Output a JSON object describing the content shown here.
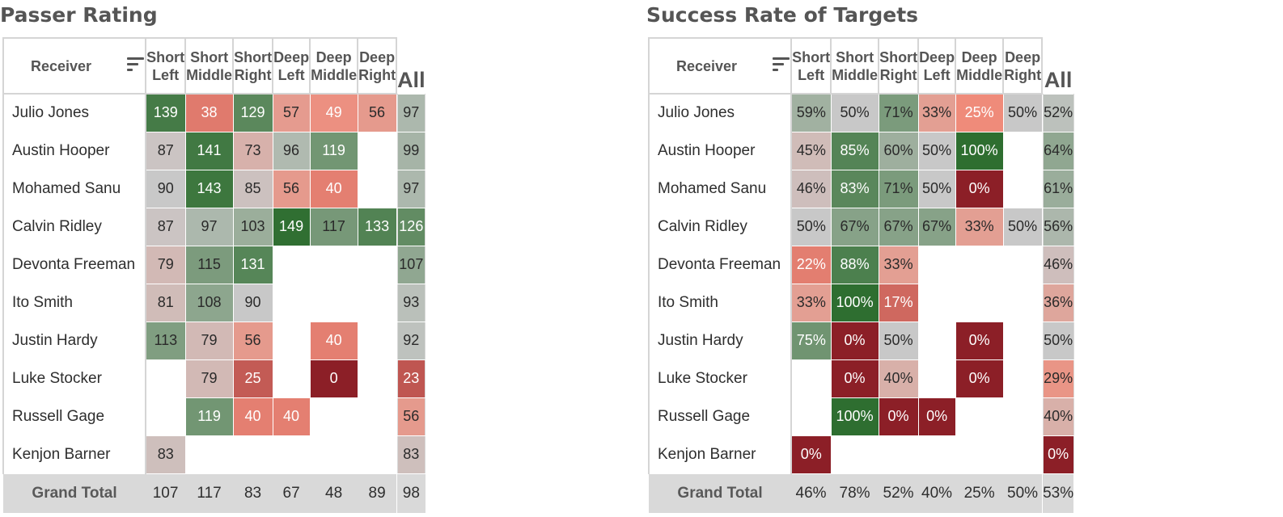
{
  "chart_data": [
    {
      "type": "heatmap",
      "title": "Passer Rating",
      "row_header": "Receiver",
      "columns": [
        {
          "line1": "Short",
          "line2": "Left"
        },
        {
          "line1": "Short",
          "line2": "Middle"
        },
        {
          "line1": "Short",
          "line2": "Right"
        },
        {
          "line1": "Deep",
          "line2": "Left"
        },
        {
          "line1": "Deep",
          "line2": "Middle"
        },
        {
          "line1": "Deep",
          "line2": "Right"
        }
      ],
      "all_label": "All",
      "rows": [
        {
          "name": "Julio Jones",
          "values": [
            139,
            38,
            129,
            57,
            49,
            56
          ],
          "all": 97
        },
        {
          "name": "Austin Hooper",
          "values": [
            87,
            141,
            73,
            96,
            119,
            null
          ],
          "all": 99
        },
        {
          "name": "Mohamed Sanu",
          "values": [
            90,
            143,
            85,
            56,
            40,
            null
          ],
          "all": 97
        },
        {
          "name": "Calvin Ridley",
          "values": [
            87,
            97,
            103,
            149,
            117,
            133
          ],
          "all": 126
        },
        {
          "name": "Devonta Freeman",
          "values": [
            79,
            115,
            131,
            null,
            null,
            null
          ],
          "all": 107
        },
        {
          "name": "Ito Smith",
          "values": [
            81,
            108,
            90,
            null,
            null,
            null
          ],
          "all": 93
        },
        {
          "name": "Justin Hardy",
          "values": [
            113,
            79,
            56,
            null,
            40,
            null
          ],
          "all": 92
        },
        {
          "name": "Luke Stocker",
          "values": [
            null,
            79,
            25,
            null,
            0,
            null
          ],
          "all": 23
        },
        {
          "name": "Russell Gage",
          "values": [
            null,
            119,
            40,
            40,
            null,
            null
          ],
          "all": 56
        },
        {
          "name": "Kenjon Barner",
          "values": [
            83,
            null,
            null,
            null,
            null,
            null
          ],
          "all": 83
        }
      ],
      "total": {
        "label": "Grand Total",
        "values": [
          107,
          117,
          83,
          67,
          48,
          89
        ],
        "all": 98
      },
      "suffix": "",
      "color_scale": {
        "min": 0,
        "mid": 90,
        "max": 150,
        "low_color": "#8c1f27",
        "mid_color": "#c8c8c8",
        "high_color": "#2e6e30"
      }
    },
    {
      "type": "heatmap",
      "title": "Success Rate of Targets",
      "row_header": "Receiver",
      "columns": [
        {
          "line1": "Short",
          "line2": "Left"
        },
        {
          "line1": "Short",
          "line2": "Middle"
        },
        {
          "line1": "Short",
          "line2": "Right"
        },
        {
          "line1": "Deep",
          "line2": "Left"
        },
        {
          "line1": "Deep",
          "line2": "Middle"
        },
        {
          "line1": "Deep",
          "line2": "Right"
        }
      ],
      "all_label": "All",
      "rows": [
        {
          "name": "Julio Jones",
          "values": [
            59,
            50,
            71,
            33,
            25,
            50
          ],
          "all": 52
        },
        {
          "name": "Austin Hooper",
          "values": [
            45,
            85,
            60,
            50,
            100,
            null
          ],
          "all": 64
        },
        {
          "name": "Mohamed Sanu",
          "values": [
            46,
            83,
            71,
            50,
            0,
            null
          ],
          "all": 61
        },
        {
          "name": "Calvin Ridley",
          "values": [
            50,
            67,
            67,
            67,
            33,
            50
          ],
          "all": 56
        },
        {
          "name": "Devonta Freeman",
          "values": [
            22,
            88,
            33,
            null,
            null,
            null
          ],
          "all": 46
        },
        {
          "name": "Ito Smith",
          "values": [
            33,
            100,
            17,
            null,
            null,
            null
          ],
          "all": 36
        },
        {
          "name": "Justin Hardy",
          "values": [
            75,
            0,
            50,
            null,
            0,
            null
          ],
          "all": 50
        },
        {
          "name": "Luke Stocker",
          "values": [
            null,
            0,
            40,
            null,
            0,
            null
          ],
          "all": 29
        },
        {
          "name": "Russell Gage",
          "values": [
            null,
            100,
            0,
            0,
            null,
            null
          ],
          "all": 40
        },
        {
          "name": "Kenjon Barner",
          "values": [
            0,
            null,
            null,
            null,
            null,
            null
          ],
          "all": 0
        }
      ],
      "total": {
        "label": "Grand Total",
        "values": [
          46,
          78,
          52,
          40,
          25,
          50
        ],
        "all": 53
      },
      "suffix": "%",
      "color_scale": {
        "min": 0,
        "mid": 50,
        "max": 100,
        "low_color": "#8c1f27",
        "mid_color": "#c8c8c8",
        "high_color": "#2e6e30"
      }
    }
  ]
}
